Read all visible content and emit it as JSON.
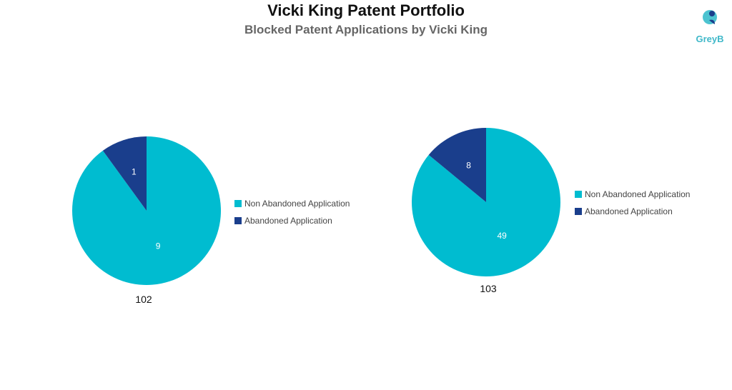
{
  "title": "Vicki King Patent Portfolio",
  "subtitle": "Blocked Patent Applications by Vicki King",
  "logo_text": "GreyB",
  "colors": {
    "non_abandoned": "#00BCD0",
    "abandoned": "#1A3E8C"
  },
  "chart_data": [
    {
      "type": "pie",
      "title": "102",
      "legend": "right",
      "slices": [
        {
          "label": "Non Abandoned Application",
          "value": 9
        },
        {
          "label": "Abandoned Application",
          "value": 1
        }
      ]
    },
    {
      "type": "pie",
      "title": "103",
      "legend": "right",
      "slices": [
        {
          "label": "Non Abandoned Application",
          "value": 49
        },
        {
          "label": "Abandoned Application",
          "value": 8
        }
      ]
    }
  ]
}
